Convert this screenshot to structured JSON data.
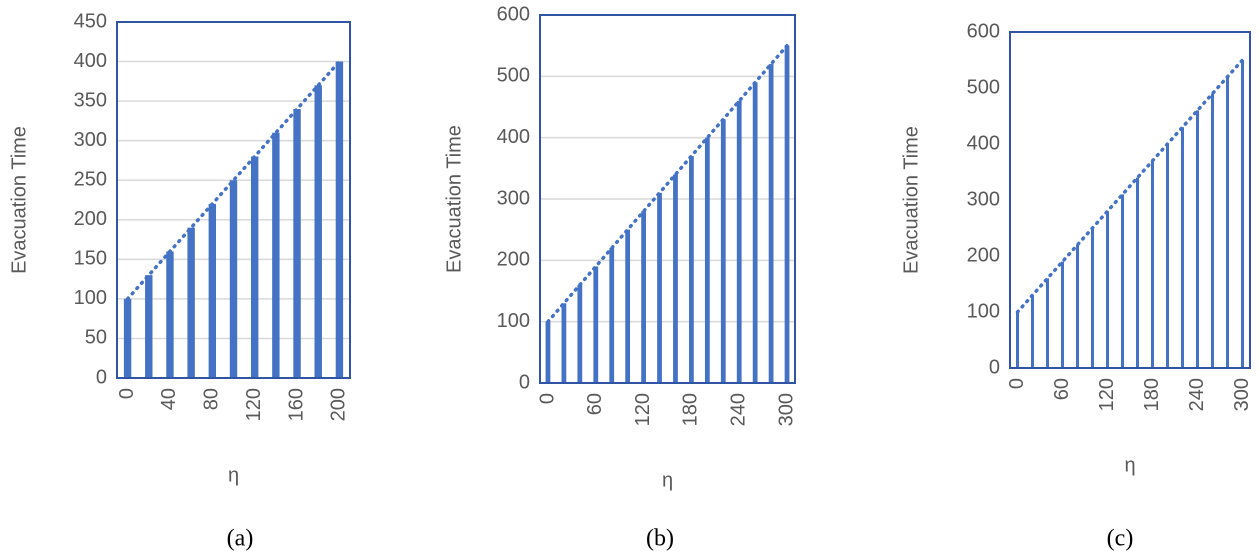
{
  "chart_data": [
    {
      "type": "bar",
      "caption": "(a)",
      "x_label": "η",
      "y_label": "Evacuation Time",
      "categories": [
        0,
        null,
        40,
        null,
        80,
        null,
        120,
        null,
        160,
        null,
        200
      ],
      "values": [
        100,
        130,
        160,
        190,
        220,
        250,
        280,
        310,
        340,
        370,
        400
      ],
      "color": "#4472c4",
      "trendline": "linear",
      "ylim": [
        0,
        450
      ],
      "yticks": [
        0,
        50,
        100,
        150,
        200,
        250,
        300,
        350,
        400,
        450
      ],
      "grid": true
    },
    {
      "type": "bar",
      "caption": "(b)",
      "x_label": "η",
      "y_label": "Evacuation Time",
      "categories": [
        0,
        null,
        null,
        60,
        null,
        null,
        120,
        null,
        null,
        180,
        null,
        null,
        240,
        null,
        null,
        300
      ],
      "values": [
        100,
        130,
        160,
        190,
        220,
        250,
        280,
        310,
        340,
        370,
        400,
        430,
        460,
        490,
        520,
        550
      ],
      "color": "#4472c4",
      "trendline": "linear",
      "ylim": [
        0,
        600
      ],
      "yticks": [
        0,
        100,
        200,
        300,
        400,
        500,
        600
      ],
      "grid": true
    },
    {
      "type": "bar",
      "caption": "(c)",
      "x_label": "η",
      "y_label": "Evacuation Time",
      "categories": [
        0,
        null,
        null,
        60,
        null,
        null,
        120,
        null,
        null,
        180,
        null,
        null,
        240,
        null,
        null,
        300
      ],
      "values": [
        100,
        130,
        160,
        190,
        220,
        250,
        280,
        310,
        340,
        370,
        400,
        430,
        460,
        490,
        520,
        550
      ],
      "color": "#4472c4",
      "trendline": "linear",
      "ylim": [
        0,
        600
      ],
      "yticks": [
        0,
        100,
        200,
        300,
        400,
        500,
        600
      ],
      "grid": false
    }
  ]
}
